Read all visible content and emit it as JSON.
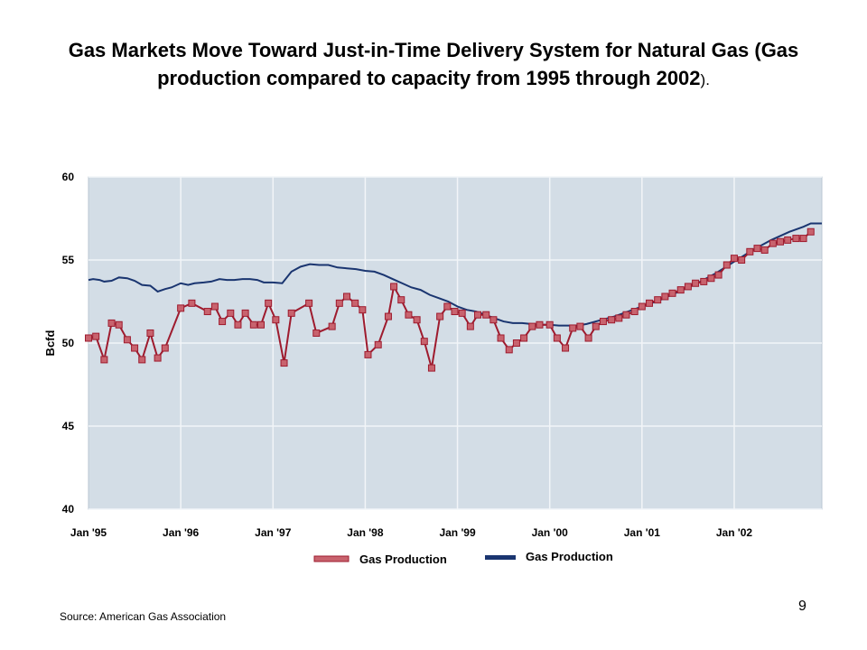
{
  "title": {
    "main": "Gas Markets Move Toward Just-in-Time Delivery System for Natural Gas (Gas production compared to capacity from 1995 through 2002",
    "end": ")."
  },
  "source": "Source:  American Gas Association",
  "page_number": "9",
  "colors": {
    "production": "#9e1b2e",
    "marker": "#c8636e",
    "capacity": "#1a3570",
    "plot_bg": "#d3dde6",
    "grid": "#f2f5f8"
  },
  "chart_data": {
    "type": "line",
    "ylabel": "Bcfd",
    "ylim": [
      40,
      60
    ],
    "yticks": [
      40,
      45,
      50,
      55,
      60
    ],
    "xlim": [
      1995.0,
      2002.95
    ],
    "x_ticks": [
      {
        "x": 1995,
        "label": "Jan '95"
      },
      {
        "x": 1996,
        "label": "Jan '96"
      },
      {
        "x": 1997,
        "label": "Jan '97"
      },
      {
        "x": 1998,
        "label": "Jan '98"
      },
      {
        "x": 1999,
        "label": "Jan '99"
      },
      {
        "x": 2000,
        "label": "Jan '00"
      },
      {
        "x": 2001,
        "label": "Jan '01"
      },
      {
        "x": 2002,
        "label": "Jan '02"
      }
    ],
    "grid": true,
    "legend_position": "bottom",
    "series": [
      {
        "name": "Gas Production",
        "style": "markers",
        "x": [
          1995.0,
          1995.08,
          1995.17,
          1995.25,
          1995.33,
          1995.42,
          1995.5,
          1995.58,
          1995.67,
          1995.75,
          1995.83,
          1996.0,
          1996.12,
          1996.29,
          1996.37,
          1996.45,
          1996.54,
          1996.62,
          1996.7,
          1996.79,
          1996.87,
          1996.95,
          1997.03,
          1997.12,
          1997.2,
          1997.39,
          1997.47,
          1997.64,
          1997.72,
          1997.8,
          1997.89,
          1997.97,
          1998.03,
          1998.14,
          1998.25,
          1998.31,
          1998.39,
          1998.47,
          1998.56,
          1998.64,
          1998.72,
          1998.81,
          1998.89,
          1998.97,
          1999.05,
          1999.14,
          1999.22,
          1999.31,
          1999.39,
          1999.47,
          1999.56,
          1999.64,
          1999.72,
          1999.81,
          1999.89,
          2000.0,
          2000.08,
          2000.17,
          2000.25,
          2000.33,
          2000.42,
          2000.5,
          2000.58,
          2000.67,
          2000.75,
          2000.83,
          2000.92,
          2001.0,
          2001.08,
          2001.17,
          2001.25,
          2001.33,
          2001.42,
          2001.5,
          2001.58,
          2001.67,
          2001.75,
          2001.83,
          2001.92,
          2002.0,
          2002.08,
          2002.17,
          2002.25,
          2002.33,
          2002.42,
          2002.5,
          2002.58,
          2002.67,
          2002.75,
          2002.83
        ],
        "values": [
          50.3,
          50.4,
          49.0,
          51.2,
          51.1,
          50.2,
          49.7,
          49.0,
          50.6,
          49.1,
          49.7,
          52.1,
          52.4,
          51.9,
          52.2,
          51.3,
          51.8,
          51.1,
          51.8,
          51.1,
          51.1,
          52.4,
          51.4,
          48.8,
          51.8,
          52.4,
          50.6,
          51.0,
          52.4,
          52.8,
          52.4,
          52.0,
          49.3,
          49.9,
          51.6,
          53.4,
          52.6,
          51.7,
          51.4,
          50.1,
          48.5,
          51.6,
          52.2,
          51.9,
          51.8,
          51.0,
          51.7,
          51.7,
          51.4,
          50.3,
          49.6,
          50.0,
          50.3,
          51.0,
          51.1,
          51.1,
          50.3,
          49.7,
          50.9,
          51.0,
          50.3,
          51.0,
          51.3,
          51.4,
          51.5,
          51.7,
          51.9,
          52.2,
          52.4,
          52.6,
          52.8,
          53.0,
          53.2,
          53.4,
          53.6,
          53.7,
          53.9,
          54.1,
          54.7,
          55.1,
          55.0,
          55.5,
          55.7,
          55.6,
          56.0,
          56.1,
          56.2,
          56.3,
          56.3,
          56.7
        ]
      },
      {
        "name": "Gas Production",
        "style": "line",
        "x": [
          1995.0,
          1995.05,
          1995.12,
          1995.17,
          1995.25,
          1995.33,
          1995.42,
          1995.5,
          1995.58,
          1995.67,
          1995.75,
          1995.83,
          1995.9,
          1996.0,
          1996.08,
          1996.15,
          1996.25,
          1996.33,
          1996.42,
          1996.5,
          1996.58,
          1996.67,
          1996.75,
          1996.83,
          1996.9,
          1997.0,
          1997.1,
          1997.2,
          1997.3,
          1997.4,
          1997.5,
          1997.6,
          1997.7,
          1997.8,
          1997.9,
          1998.0,
          1998.1,
          1998.2,
          1998.3,
          1998.4,
          1998.5,
          1998.6,
          1998.7,
          1998.8,
          1998.9,
          1999.0,
          1999.1,
          1999.2,
          1999.3,
          1999.4,
          1999.5,
          1999.6,
          1999.7,
          1999.8,
          1999.9,
          2000.0,
          2000.1,
          2000.2,
          2000.3,
          2000.4,
          2000.5,
          2000.6,
          2000.7,
          2000.8,
          2000.9,
          2001.0,
          2001.2,
          2001.4,
          2001.6,
          2001.8,
          2002.0,
          2002.2,
          2002.4,
          2002.6,
          2002.75,
          2002.83,
          2002.95
        ],
        "values": [
          53.8,
          53.85,
          53.8,
          53.7,
          53.75,
          53.95,
          53.9,
          53.75,
          53.5,
          53.45,
          53.1,
          53.25,
          53.35,
          53.6,
          53.5,
          53.6,
          53.65,
          53.7,
          53.85,
          53.8,
          53.8,
          53.85,
          53.85,
          53.8,
          53.65,
          53.65,
          53.6,
          54.3,
          54.6,
          54.75,
          54.7,
          54.7,
          54.55,
          54.5,
          54.45,
          54.35,
          54.3,
          54.1,
          53.85,
          53.6,
          53.35,
          53.2,
          52.9,
          52.7,
          52.5,
          52.2,
          52.0,
          51.9,
          51.7,
          51.5,
          51.3,
          51.2,
          51.2,
          51.15,
          51.1,
          51.1,
          51.05,
          51.05,
          51.05,
          51.15,
          51.3,
          51.45,
          51.6,
          51.8,
          52.0,
          52.2,
          52.6,
          53.1,
          53.6,
          54.2,
          54.9,
          55.6,
          56.2,
          56.7,
          57.0,
          57.2,
          57.2
        ]
      }
    ]
  }
}
